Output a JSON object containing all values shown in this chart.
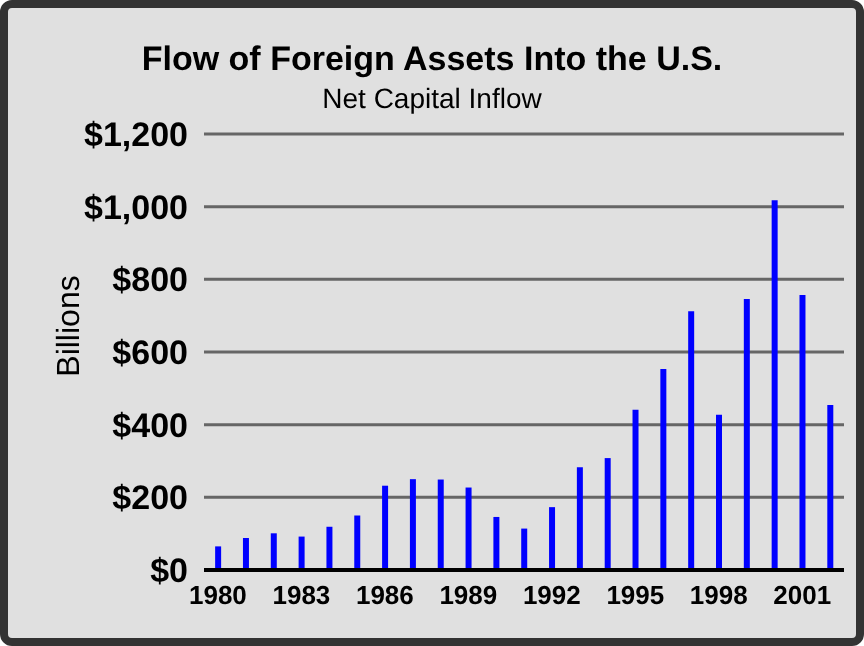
{
  "chart_data": {
    "type": "bar",
    "title": "Flow of Foreign Assets Into the U.S.",
    "subtitle": "Net Capital Inflow",
    "ylabel": "Billions",
    "categories": [
      "1980",
      null,
      null,
      "1983",
      null,
      null,
      "1986",
      null,
      null,
      "1989",
      null,
      null,
      "1992",
      null,
      null,
      "1995",
      null,
      null,
      "1998",
      null,
      null,
      "2001",
      null
    ],
    "values": [
      65,
      88,
      101,
      92,
      119,
      150,
      232,
      250,
      249,
      227,
      146,
      114,
      173,
      283,
      308,
      441,
      553,
      712,
      427,
      746,
      1018,
      757,
      454
    ],
    "color": "#0000ff",
    "ylim": [
      0,
      1200
    ],
    "yticks": [
      {
        "value": 0,
        "label": "$0"
      },
      {
        "value": 200,
        "label": "$200"
      },
      {
        "value": 400,
        "label": "$400"
      },
      {
        "value": 600,
        "label": "$600"
      },
      {
        "value": 800,
        "label": "$800"
      },
      {
        "value": 1000,
        "label": "$1,000"
      },
      {
        "value": 1200,
        "label": "$1,200"
      }
    ],
    "grid": "y"
  }
}
